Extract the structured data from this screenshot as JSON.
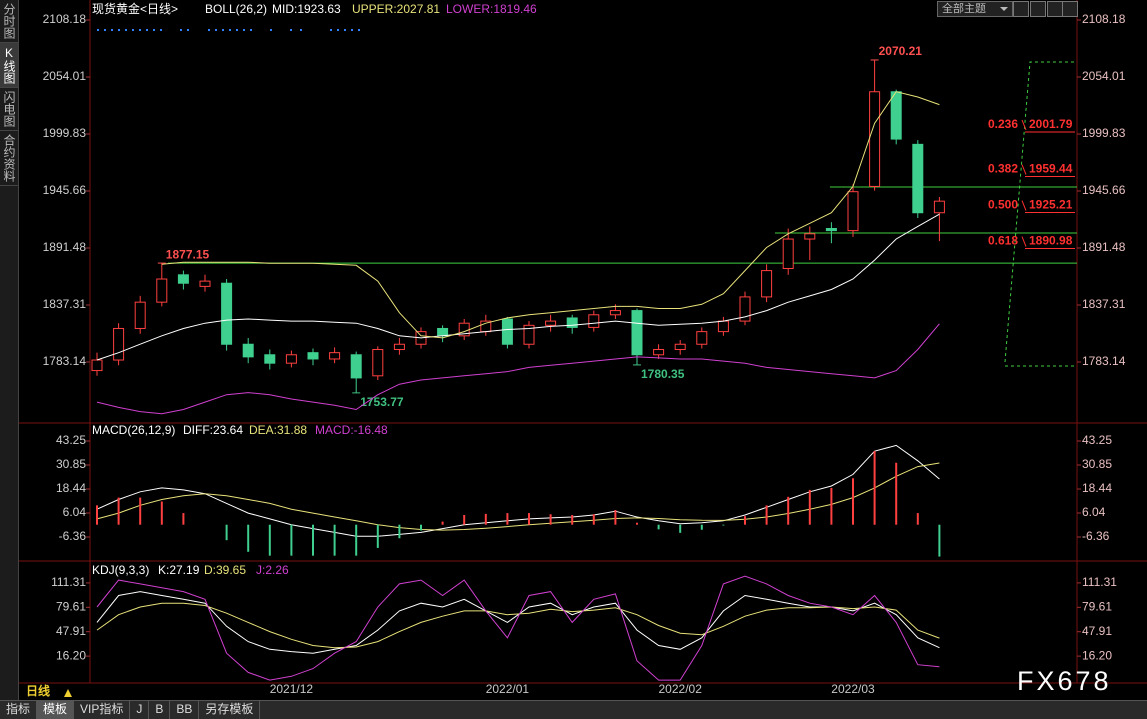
{
  "ui": {
    "sidebar_tabs": [
      "分时图",
      "K线图",
      "闪电图",
      "合约资料"
    ],
    "theme_menu": "全部主题",
    "period": "日线",
    "bottom_tabs": [
      "指标",
      "模板",
      "VIP指标",
      "J",
      "B",
      "BB",
      "另存模板"
    ],
    "watermark": "FX678"
  },
  "chart_data": [
    {
      "type": "candlestick",
      "title": "现货黄金<日线>",
      "indicator": "BOLL(26,2)",
      "categories": [
        null,
        null,
        null,
        null,
        null,
        null,
        null,
        null,
        null,
        "2021/12",
        null,
        null,
        null,
        null,
        null,
        null,
        null,
        null,
        null,
        "2022/01",
        null,
        null,
        null,
        null,
        null,
        null,
        null,
        "2022/02",
        null,
        null,
        null,
        null,
        null,
        null,
        null,
        "2022/03",
        null,
        null,
        null,
        null
      ],
      "open": [
        1775,
        1785,
        1815,
        1840,
        1866,
        1855,
        1858,
        1800,
        1790,
        1782,
        1792,
        1786,
        1790,
        1770,
        1795,
        1800,
        1815,
        1808,
        1812,
        1824,
        1800,
        1818,
        1825,
        1816,
        1828,
        1832,
        1790,
        1795,
        1800,
        1812,
        1822,
        1845,
        1872,
        1900,
        1910,
        1908,
        1950,
        2040,
        1990,
        1925
      ],
      "high": [
        1792,
        1820,
        1846,
        1877.15,
        1870,
        1866,
        1862,
        1806,
        1795,
        1794,
        1796,
        1797,
        1793,
        1798,
        1806,
        1816,
        1818,
        1824,
        1828,
        1826,
        1822,
        1828,
        1828,
        1832,
        1838,
        1834,
        1800,
        1804,
        1816,
        1826,
        1850,
        1876,
        1910,
        1912,
        1916,
        1952,
        2070.21,
        2042,
        1994,
        1940
      ],
      "low": [
        1770,
        1780,
        1810,
        1836,
        1852,
        1850,
        1794,
        1782,
        1776,
        1778,
        1780,
        1782,
        1753.77,
        1766,
        1790,
        1796,
        1802,
        1804,
        1808,
        1796,
        1796,
        1812,
        1810,
        1812,
        1824,
        1780.35,
        1786,
        1790,
        1796,
        1808,
        1818,
        1840,
        1866,
        1880,
        1896,
        1902,
        1946,
        1990,
        1920,
        1898
      ],
      "close": [
        1785,
        1815,
        1840,
        1862,
        1858,
        1860,
        1800,
        1788,
        1782,
        1790,
        1786,
        1792,
        1768,
        1795,
        1800,
        1812,
        1808,
        1820,
        1822,
        1800,
        1818,
        1822,
        1816,
        1828,
        1832,
        1790,
        1795,
        1800,
        1812,
        1822,
        1845,
        1870,
        1900,
        1905,
        1908,
        1945,
        2040,
        1995,
        1925,
        1936
      ],
      "up_color": "#ff4040",
      "down_color": "#3fcf8e",
      "series": [
        {
          "name": "MID:1923.63",
          "color": "#ffffff",
          "values": [
            1785,
            1792,
            1800,
            1808,
            1815,
            1820,
            1823,
            1824,
            1823,
            1822,
            1822,
            1821,
            1820,
            1815,
            1808,
            1806,
            1808,
            1810,
            1812,
            1814,
            1815,
            1817,
            1818,
            1820,
            1822,
            1820,
            1818,
            1819,
            1820,
            1822,
            1826,
            1832,
            1840,
            1846,
            1852,
            1862,
            1880,
            1900,
            1912,
            1923.63
          ]
        },
        {
          "name": "UPPER:2027.81",
          "color": "#e8e27a",
          "values": [
            null,
            null,
            null,
            1876,
            1878,
            1878,
            1878,
            1878,
            1877,
            1877,
            1877,
            1876,
            1875,
            1860,
            1830,
            1808,
            1806,
            1812,
            1820,
            1825,
            1828,
            1830,
            1832,
            1834,
            1836,
            1836,
            1834,
            1834,
            1838,
            1848,
            1870,
            1892,
            1905,
            1915,
            1925,
            1950,
            2010,
            2040,
            2035,
            2027.81
          ]
        },
        {
          "name": "LOWER:1819.46",
          "color": "#d040d0",
          "values": [
            1745,
            1740,
            1736,
            1734,
            1738,
            1745,
            1752,
            1754,
            1752,
            1748,
            1745,
            1742,
            1738,
            1752,
            1762,
            1766,
            1768,
            1770,
            1772,
            1774,
            1778,
            1780,
            1782,
            1784,
            1786,
            1788,
            1787,
            1786,
            1786,
            1784,
            1782,
            1778,
            1776,
            1774,
            1772,
            1770,
            1768,
            1775,
            1795,
            1819.46
          ]
        }
      ],
      "hlines": [
        1877.15,
        1949.5,
        1905.7
      ],
      "hline_color": "#40d040",
      "fib_levels": [
        {
          "ratio": "0.236",
          "value": 2001.79
        },
        {
          "ratio": "0.382",
          "value": 1959.44
        },
        {
          "ratio": "0.500",
          "value": 1925.21
        },
        {
          "ratio": "0.618",
          "value": 1890.98
        }
      ],
      "ylim": [
        1728.0,
        2117.7
      ],
      "yticks": [
        2108.18,
        2054.01,
        1999.83,
        1945.66,
        1891.48,
        1837.31,
        1783.14
      ]
    },
    {
      "type": "macd",
      "title": "MACD(26,12,9)",
      "series": [
        {
          "name": "DIFF:23.64",
          "color": "#ffffff",
          "values": [
            8,
            13,
            17,
            19,
            18,
            16,
            11,
            6,
            3,
            0,
            -2,
            -4,
            -6,
            -6,
            -5,
            -4,
            -2,
            0,
            1,
            2,
            3,
            3.5,
            4,
            5,
            7,
            4,
            2,
            0.5,
            1,
            2,
            5,
            9,
            13,
            17,
            20,
            26,
            38,
            41,
            33,
            23.64
          ]
        },
        {
          "name": "DEA:31.88",
          "color": "#e8e27a",
          "values": [
            3,
            6,
            10,
            13,
            15,
            16,
            15,
            13,
            11,
            8,
            6,
            4,
            2,
            0,
            -1.5,
            -2.5,
            -2.8,
            -2.5,
            -1.8,
            -1,
            0,
            0.8,
            1.5,
            2.3,
            3.2,
            3.5,
            3.2,
            2.6,
            2.3,
            2.2,
            2.8,
            4,
            5.8,
            8,
            10.5,
            14,
            19,
            25,
            30,
            31.88
          ]
        },
        {
          "name": "MACD:-16.48",
          "color": "#d040d0",
          "style": "bar",
          "pos_color": "#ff4040",
          "neg_color": "#3fcf8e",
          "values": [
            10,
            14,
            14,
            12,
            6,
            0,
            -8,
            -14,
            -16,
            -16,
            -16,
            -16,
            -16,
            -12,
            -7,
            -3,
            1.6,
            5,
            5.6,
            6,
            6,
            5.4,
            5,
            5.4,
            7.6,
            1,
            -2.4,
            -4.2,
            -2.6,
            -0.4,
            4.4,
            10,
            14.4,
            18,
            19,
            24,
            38,
            32,
            6,
            -16.48
          ]
        }
      ],
      "ylim": [
        -18.24,
        51.52
      ],
      "yticks": [
        43.25,
        30.85,
        18.44,
        6.04,
        -6.36
      ]
    },
    {
      "type": "kdj",
      "title": "KDJ(9,3,3)",
      "series": [
        {
          "name": "K:27.19",
          "color": "#ffffff",
          "values": [
            60,
            95,
            100,
            95,
            90,
            85,
            55,
            35,
            25,
            22,
            20,
            25,
            30,
            50,
            75,
            85,
            80,
            90,
            75,
            60,
            80,
            85,
            70,
            80,
            85,
            50,
            30,
            25,
            40,
            75,
            95,
            90,
            85,
            80,
            80,
            75,
            85,
            70,
            40,
            27.19
          ]
        },
        {
          "name": "D:39.65",
          "color": "#e8e27a",
          "values": [
            50,
            70,
            80,
            85,
            85,
            82,
            72,
            60,
            48,
            38,
            30,
            27,
            28,
            35,
            48,
            60,
            68,
            75,
            75,
            70,
            72,
            77,
            74,
            76,
            79,
            70,
            56,
            46,
            44,
            55,
            68,
            76,
            79,
            79,
            80,
            78,
            80,
            76,
            50,
            39.65
          ]
        },
        {
          "name": "J:2.26",
          "color": "#d040d0",
          "values": [
            80,
            115,
            110,
            105,
            100,
            90,
            20,
            -5,
            -15,
            -10,
            0,
            20,
            35,
            80,
            110,
            115,
            95,
            115,
            75,
            40,
            95,
            100,
            60,
            90,
            97,
            10,
            -15,
            -15,
            30,
            110,
            120,
            110,
            95,
            85,
            80,
            70,
            95,
            60,
            5,
            2.26
          ]
        }
      ],
      "ylim": [
        -18.74,
        137.19
      ],
      "yticks": [
        111.31,
        79.61,
        47.91,
        {
          "value": 16.2,
          "label": "16.20"
        }
      ]
    }
  ]
}
